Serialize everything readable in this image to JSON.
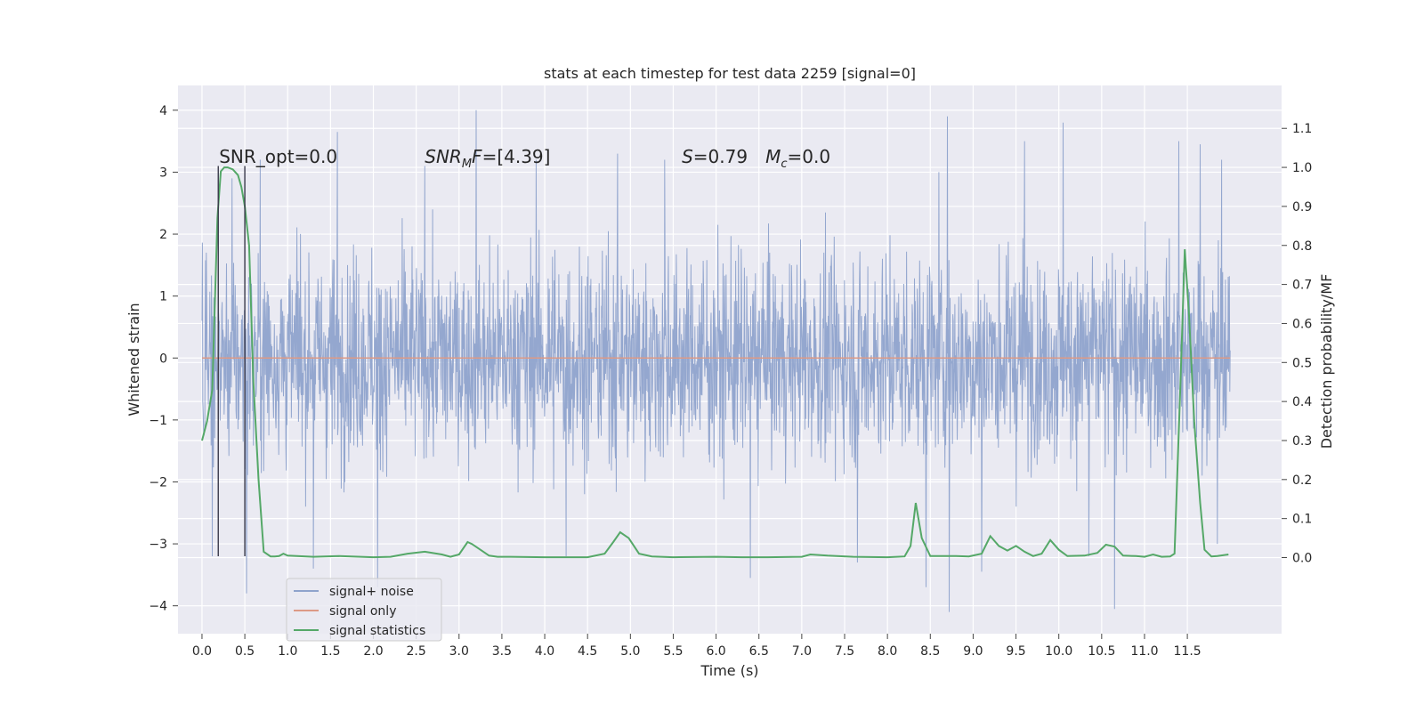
{
  "chart_data": {
    "type": "line",
    "title": "stats at each timestep for test data 2259 [signal=0]",
    "xlabel": "Time (s)",
    "ylabel": "Whitened strain",
    "y2label": "Detection probability/MF",
    "xlim": [
      -0.28,
      12.6
    ],
    "ylim": [
      -4.45,
      4.4
    ],
    "y2lim": [
      -0.195,
      1.21
    ],
    "xticks": [
      0.0,
      0.5,
      1.0,
      1.5,
      2.0,
      2.5,
      3.0,
      3.5,
      4.0,
      4.5,
      5.0,
      5.5,
      6.0,
      6.5,
      7.0,
      7.5,
      8.0,
      8.5,
      9.0,
      9.5,
      10.0,
      10.5,
      11.0,
      11.5
    ],
    "xtick_labels": [
      "0.0",
      "0.5",
      "1.0",
      "1.5",
      "2.0",
      "2.5",
      "3.0",
      "3.5",
      "4.0",
      "4.5",
      "5.0",
      "5.5",
      "6.0",
      "6.5",
      "7.0",
      "7.5",
      "8.0",
      "8.5",
      "9.0",
      "9.5",
      "10.0",
      "10.5",
      "11.0",
      "11.5"
    ],
    "yticks": [
      -4,
      -3,
      -2,
      -1,
      0,
      1,
      2,
      3,
      4
    ],
    "ytick_labels": [
      "−4",
      "−3",
      "−2",
      "−1",
      "0",
      "1",
      "2",
      "3",
      "4"
    ],
    "y2ticks": [
      0.0,
      0.1,
      0.2,
      0.3,
      0.4,
      0.5,
      0.6,
      0.7,
      0.8,
      0.9,
      1.0,
      1.1
    ],
    "y2tick_labels": [
      "0.0",
      "0.1",
      "0.2",
      "0.3",
      "0.4",
      "0.5",
      "0.6",
      "0.7",
      "0.8",
      "0.9",
      "1.0",
      "1.1"
    ],
    "grid": true,
    "legend_position": "lower-left",
    "annotations": [
      {
        "text": "SNR_opt=0.0",
        "x": 0.2,
        "y": 3.15
      },
      {
        "text": "SNR_MF=[4.39]",
        "x": 2.6,
        "y": 3.15
      },
      {
        "text": "S=0.79   M_c=0.0",
        "x": 5.6,
        "y": 3.15
      }
    ],
    "vlines": [
      {
        "x": 0.19,
        "y_from": -3.2,
        "y_to": 3.1
      },
      {
        "x": 0.5,
        "y_from": -3.2,
        "y_to": 3.1
      }
    ],
    "series": [
      {
        "name": "signal+ noise",
        "axis": "left",
        "color": "#8fa3cc",
        "description": "whitened noise samples spanning t = 0.0 to 12.0 s",
        "typical_range": [
          -1.9,
          1.9
        ],
        "peaks": [
          {
            "x": 0.05,
            "y": 1.7
          },
          {
            "x": 0.12,
            "y": -3.2
          },
          {
            "x": 0.35,
            "y": 2.9
          },
          {
            "x": 0.52,
            "y": -3.8
          },
          {
            "x": 0.68,
            "y": 3.2
          },
          {
            "x": 1.3,
            "y": -3.4
          },
          {
            "x": 1.58,
            "y": 3.65
          },
          {
            "x": 2.05,
            "y": -3.7
          },
          {
            "x": 2.6,
            "y": 3.1
          },
          {
            "x": 3.2,
            "y": 4.0
          },
          {
            "x": 3.9,
            "y": 3.2
          },
          {
            "x": 4.25,
            "y": -3.2
          },
          {
            "x": 4.85,
            "y": 3.3
          },
          {
            "x": 5.4,
            "y": 3.2
          },
          {
            "x": 6.4,
            "y": -3.55
          },
          {
            "x": 7.65,
            "y": -3.3
          },
          {
            "x": 8.45,
            "y": -3.7
          },
          {
            "x": 8.6,
            "y": 3.0
          },
          {
            "x": 8.7,
            "y": 3.9
          },
          {
            "x": 8.72,
            "y": -4.1
          },
          {
            "x": 9.1,
            "y": -3.45
          },
          {
            "x": 9.6,
            "y": 3.5
          },
          {
            "x": 10.05,
            "y": 3.8
          },
          {
            "x": 10.35,
            "y": -3.2
          },
          {
            "x": 10.65,
            "y": -4.05
          },
          {
            "x": 11.4,
            "y": 3.5
          },
          {
            "x": 11.65,
            "y": 3.45
          },
          {
            "x": 11.9,
            "y": 3.2
          },
          {
            "x": 11.85,
            "y": -3.0
          }
        ]
      },
      {
        "name": "signal only",
        "axis": "left",
        "color": "#dd9a86",
        "x": [
          0.0,
          12.0
        ],
        "y": [
          0.0,
          0.0
        ]
      },
      {
        "name": "signal statistics",
        "axis": "right",
        "color": "#55a868",
        "x": [
          0.0,
          0.06,
          0.12,
          0.18,
          0.22,
          0.26,
          0.3,
          0.36,
          0.42,
          0.46,
          0.5,
          0.55,
          0.6,
          0.66,
          0.72,
          0.8,
          0.85,
          0.9,
          0.95,
          1.0,
          1.3,
          1.6,
          2.0,
          2.2,
          2.4,
          2.6,
          2.8,
          2.9,
          3.0,
          3.1,
          3.15,
          3.25,
          3.35,
          3.45,
          3.6,
          4.0,
          4.5,
          4.7,
          4.8,
          4.88,
          4.98,
          5.1,
          5.25,
          5.5,
          6.0,
          6.3,
          6.6,
          7.0,
          7.1,
          7.3,
          7.6,
          8.0,
          8.2,
          8.27,
          8.33,
          8.4,
          8.5,
          8.8,
          8.95,
          9.1,
          9.2,
          9.3,
          9.4,
          9.5,
          9.6,
          9.7,
          9.8,
          9.9,
          10.0,
          10.1,
          10.3,
          10.45,
          10.55,
          10.65,
          10.75,
          10.9,
          11.0,
          11.1,
          11.2,
          11.3,
          11.35,
          11.42,
          11.47,
          11.52,
          11.58,
          11.65,
          11.7,
          11.78,
          11.85,
          11.98
        ],
        "y": [
          0.3,
          0.35,
          0.43,
          0.87,
          0.99,
          1.0,
          1.0,
          0.995,
          0.98,
          0.95,
          0.9,
          0.8,
          0.45,
          0.2,
          0.015,
          0.003,
          0.003,
          0.004,
          0.01,
          0.005,
          0.002,
          0.004,
          0.001,
          0.002,
          0.01,
          0.015,
          0.008,
          0.002,
          0.008,
          0.04,
          0.035,
          0.02,
          0.005,
          0.002,
          0.002,
          0.001,
          0.001,
          0.01,
          0.04,
          0.065,
          0.05,
          0.01,
          0.003,
          0.001,
          0.002,
          0.001,
          0.001,
          0.002,
          0.008,
          0.005,
          0.002,
          0.001,
          0.003,
          0.03,
          0.14,
          0.05,
          0.004,
          0.004,
          0.003,
          0.01,
          0.055,
          0.03,
          0.018,
          0.03,
          0.015,
          0.004,
          0.01,
          0.045,
          0.02,
          0.004,
          0.005,
          0.012,
          0.033,
          0.028,
          0.005,
          0.004,
          0.002,
          0.008,
          0.002,
          0.003,
          0.01,
          0.45,
          0.79,
          0.62,
          0.35,
          0.14,
          0.02,
          0.003,
          0.004,
          0.008
        ]
      }
    ]
  },
  "legend": {
    "items": [
      {
        "label": "signal+ noise",
        "color": "#8fa3cc"
      },
      {
        "label": "signal only",
        "color": "#dd9a86"
      },
      {
        "label": "signal statistics",
        "color": "#55a868"
      }
    ]
  }
}
